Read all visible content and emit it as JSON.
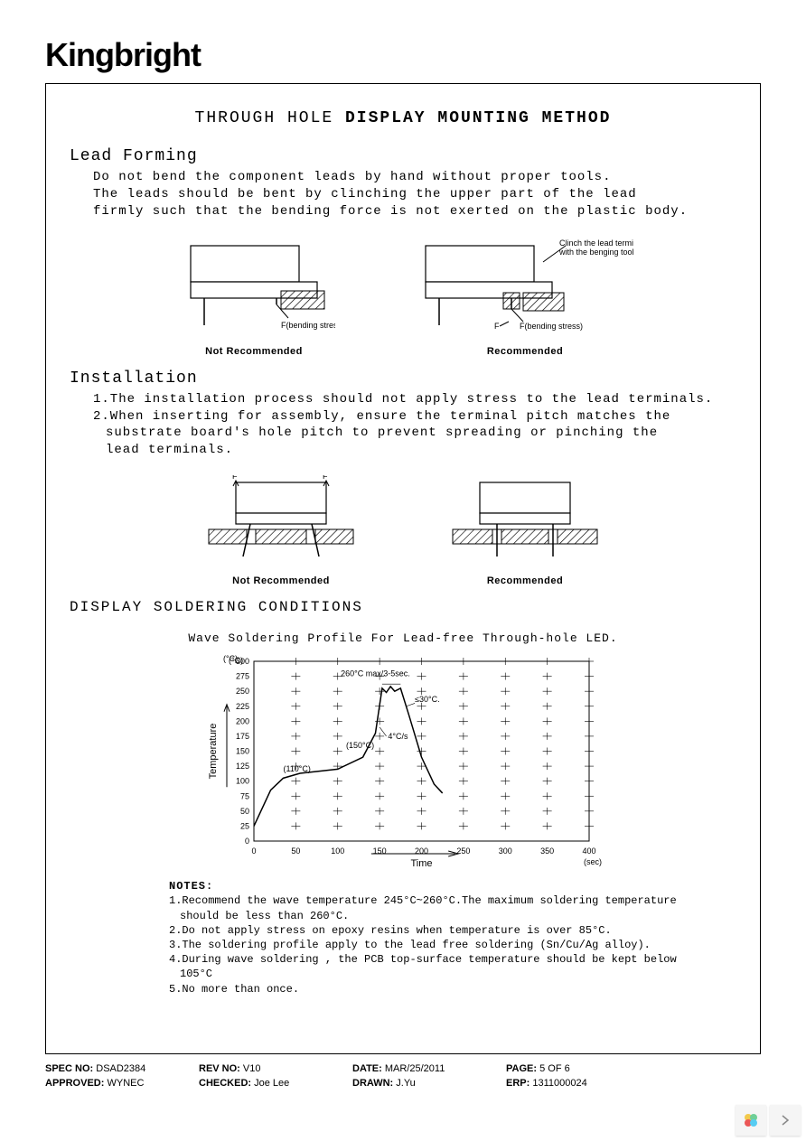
{
  "logo": "Kingbright",
  "title": {
    "part1": "THROUGH HOLE",
    "part2": "DISPLAY MOUNTING METHOD"
  },
  "leadForming": {
    "heading": "Lead Forming",
    "line1": "Do not bend the component leads by hand without proper tools.",
    "line2": "The leads should be bent by clinching the upper part of the lead",
    "line3": "firmly such that the bending force is not exerted on the plastic body."
  },
  "diagram1": {
    "leftCaption": "Not Recommended",
    "rightCaption": "Recommended",
    "clinchLabel1": "Clinch the lead terminal",
    "clinchLabel2": "with the benging tool",
    "fLabel": "F(bending stress)",
    "fShort": "F",
    "colors": {
      "stroke": "#000000",
      "hatch": "#000000",
      "bg": "#ffffff"
    }
  },
  "installation": {
    "heading": "Installation",
    "item1": "1.The installation process should not apply stress to the lead terminals.",
    "item2a": "2.When inserting for assembly, ensure the terminal pitch matches the",
    "item2b": "substrate board's  hole pitch to prevent spreading or pinching the",
    "item2c": "lead terminals."
  },
  "diagram2": {
    "leftCaption": "Not Recommended",
    "rightCaption": "Recommended",
    "fLabel": "F"
  },
  "soldering": {
    "heading": "DISPLAY SOLDERING CONDITIONS",
    "chartTitle": "Wave Soldering Profile For Lead-free Through-hole LED."
  },
  "chart": {
    "type": "line",
    "xlabel": "Time",
    "xunit": "(sec)",
    "ylabel": "Temperature",
    "yunit": "(°C)",
    "xlim": [
      0,
      400
    ],
    "xtick_step": 50,
    "ylim": [
      0,
      300
    ],
    "ytick_step": 25,
    "yticks": [
      0,
      25,
      50,
      75,
      100,
      125,
      150,
      175,
      200,
      225,
      250,
      275,
      300
    ],
    "xticks": [
      0,
      50,
      100,
      150,
      200,
      250,
      300,
      350,
      400
    ],
    "line_color": "#000000",
    "grid_color": "#000000",
    "background_color": "#ffffff",
    "line_width": 1.5,
    "profile_points": [
      {
        "x": 0,
        "y": 25
      },
      {
        "x": 20,
        "y": 85
      },
      {
        "x": 35,
        "y": 105
      },
      {
        "x": 55,
        "y": 113
      },
      {
        "x": 100,
        "y": 120
      },
      {
        "x": 130,
        "y": 140
      },
      {
        "x": 145,
        "y": 180
      },
      {
        "x": 153,
        "y": 255
      },
      {
        "x": 158,
        "y": 248
      },
      {
        "x": 163,
        "y": 258
      },
      {
        "x": 168,
        "y": 250
      },
      {
        "x": 175,
        "y": 255
      },
      {
        "x": 185,
        "y": 210
      },
      {
        "x": 200,
        "y": 140
      },
      {
        "x": 215,
        "y": 95
      },
      {
        "x": 225,
        "y": 80
      }
    ],
    "annotations": {
      "a110": "(110°C)",
      "a150": "(150°C)",
      "peak": "260°C max/3-5sec.",
      "slope": "4°C/s",
      "drop": "≤30°C."
    }
  },
  "notes": {
    "heading": "NOTES:",
    "n1": "1.Recommend the wave temperature 245°C~260°C.The maximum soldering temperature should be less than 260°C.",
    "n2": "2.Do not apply stress on epoxy resins when temperature is over 85°C.",
    "n3": "3.The soldering profile apply to the lead free soldering (Sn/Cu/Ag alloy).",
    "n4": "4.During wave soldering , the PCB top-surface temperature should be kept below 105°C",
    "n5": "5.No more than once."
  },
  "footer": {
    "specNo": {
      "label": "SPEC NO:",
      "value": "DSAD2384"
    },
    "revNo": {
      "label": "REV NO:",
      "value": "V10"
    },
    "date": {
      "label": "DATE:",
      "value": "MAR/25/2011"
    },
    "page": {
      "label": "PAGE:",
      "value": "5 OF 6"
    },
    "approved": {
      "label": "APPROVED:",
      "value": "WYNEC"
    },
    "checked": {
      "label": "CHECKED:",
      "value": "Joe Lee"
    },
    "drawn": {
      "label": "DRAWN:",
      "value": "J.Yu"
    },
    "erp": {
      "label": "ERP:",
      "value": "1311000024"
    }
  }
}
